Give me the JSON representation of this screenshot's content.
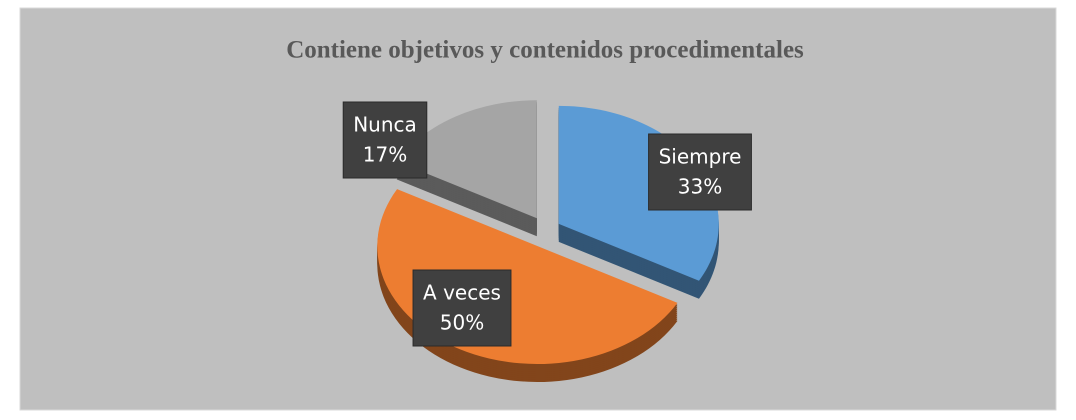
{
  "chart_data": {
    "type": "pie",
    "title": "Contiene objetivos y contenidos procedimentales",
    "categories": [
      "Siempre",
      "A veces",
      "Nunca"
    ],
    "values": [
      33,
      50,
      17
    ],
    "value_labels": [
      "33%",
      "50%",
      "17%"
    ],
    "colors": [
      "#5b9bd5",
      "#ed7d31",
      "#a5a5a5"
    ]
  }
}
